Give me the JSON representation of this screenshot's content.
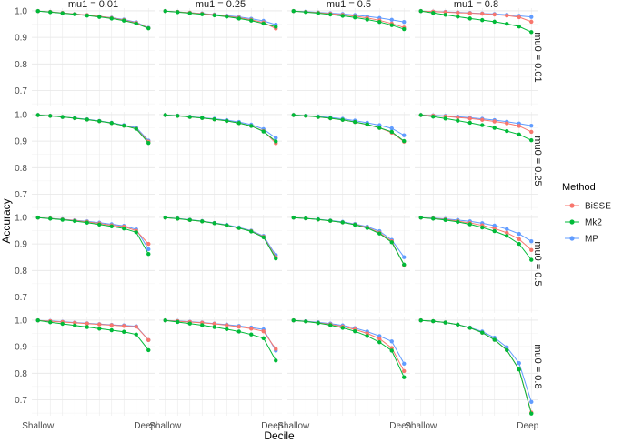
{
  "chart_data": {
    "type": "line",
    "xlabel": "Decile",
    "ylabel": "Accuracy",
    "x_tick_labels": [
      "Shallow",
      "Deep"
    ],
    "x": [
      1,
      2,
      3,
      4,
      5,
      6,
      7,
      8,
      9,
      10
    ],
    "ylim": [
      0.64,
      1.01
    ],
    "y_ticks": [
      0.7,
      0.8,
      0.9,
      1.0
    ],
    "y_tick_labels": [
      "0.7",
      "0.8",
      "0.9",
      "1.0"
    ],
    "column_labels": [
      "mu1 = 0.01",
      "mu1 = 0.25",
      "mu1 = 0.5",
      "mu1 = 0.8"
    ],
    "row_labels": [
      "mu0 = 0.01",
      "mu0 = 0.25",
      "mu0 = 0.5",
      "mu0 = 0.8"
    ],
    "legend": {
      "title": "Method",
      "position": "right",
      "items": [
        {
          "label": "BiSSE",
          "color": "#F8766D"
        },
        {
          "label": "Mk2",
          "color": "#00BA38"
        },
        {
          "label": "MP",
          "color": "#619CFF"
        }
      ]
    },
    "grid": true,
    "panels": [
      [
        {
          "BiSSE": [
            0.999,
            0.996,
            0.992,
            0.988,
            0.984,
            0.979,
            0.973,
            0.965,
            0.955,
            0.935
          ],
          "Mk2": [
            0.999,
            0.995,
            0.991,
            0.987,
            0.982,
            0.977,
            0.971,
            0.963,
            0.952,
            0.934
          ],
          "MP": [
            0.999,
            0.996,
            0.992,
            0.988,
            0.984,
            0.979,
            0.974,
            0.967,
            0.957,
            0.936
          ]
        },
        {
          "BiSSE": [
            0.999,
            0.996,
            0.993,
            0.989,
            0.985,
            0.98,
            0.974,
            0.966,
            0.956,
            0.933
          ],
          "Mk2": [
            0.999,
            0.995,
            0.991,
            0.987,
            0.983,
            0.978,
            0.971,
            0.963,
            0.952,
            0.94
          ],
          "MP": [
            0.999,
            0.996,
            0.993,
            0.99,
            0.986,
            0.982,
            0.977,
            0.97,
            0.962,
            0.948
          ]
        },
        {
          "BiSSE": [
            0.999,
            0.996,
            0.993,
            0.989,
            0.985,
            0.98,
            0.973,
            0.964,
            0.952,
            0.937
          ],
          "Mk2": [
            0.999,
            0.995,
            0.991,
            0.986,
            0.981,
            0.975,
            0.967,
            0.958,
            0.946,
            0.931
          ],
          "MP": [
            0.999,
            0.997,
            0.994,
            0.991,
            0.988,
            0.984,
            0.979,
            0.973,
            0.966,
            0.958
          ]
        },
        {
          "BiSSE": [
            0.999,
            0.997,
            0.995,
            0.993,
            0.991,
            0.989,
            0.986,
            0.982,
            0.976,
            0.959
          ],
          "Mk2": [
            0.999,
            0.992,
            0.985,
            0.978,
            0.971,
            0.965,
            0.959,
            0.951,
            0.941,
            0.92
          ],
          "MP": [
            0.999,
            0.997,
            0.996,
            0.994,
            0.992,
            0.99,
            0.988,
            0.985,
            0.981,
            0.977
          ]
        }
      ],
      [
        {
          "BiSSE": [
            0.998,
            0.995,
            0.991,
            0.986,
            0.981,
            0.975,
            0.968,
            0.958,
            0.947,
            0.898
          ],
          "Mk2": [
            0.998,
            0.995,
            0.991,
            0.986,
            0.981,
            0.975,
            0.968,
            0.958,
            0.946,
            0.893
          ],
          "MP": [
            0.998,
            0.995,
            0.991,
            0.987,
            0.982,
            0.976,
            0.969,
            0.96,
            0.951,
            0.902
          ]
        },
        {
          "BiSSE": [
            0.998,
            0.995,
            0.991,
            0.987,
            0.982,
            0.976,
            0.968,
            0.957,
            0.938,
            0.892
          ],
          "Mk2": [
            0.998,
            0.995,
            0.991,
            0.987,
            0.982,
            0.976,
            0.968,
            0.957,
            0.936,
            0.899
          ],
          "MP": [
            0.998,
            0.996,
            0.992,
            0.988,
            0.984,
            0.979,
            0.972,
            0.962,
            0.945,
            0.912
          ]
        },
        {
          "BiSSE": [
            0.998,
            0.995,
            0.991,
            0.986,
            0.98,
            0.972,
            0.962,
            0.95,
            0.932,
            0.898
          ],
          "Mk2": [
            0.998,
            0.995,
            0.991,
            0.986,
            0.98,
            0.972,
            0.963,
            0.95,
            0.935,
            0.9
          ],
          "MP": [
            0.998,
            0.996,
            0.993,
            0.989,
            0.984,
            0.977,
            0.969,
            0.96,
            0.948,
            0.922
          ]
        },
        {
          "BiSSE": [
            0.998,
            0.996,
            0.993,
            0.989,
            0.985,
            0.98,
            0.974,
            0.967,
            0.957,
            0.935
          ],
          "Mk2": [
            0.998,
            0.992,
            0.985,
            0.977,
            0.969,
            0.96,
            0.95,
            0.938,
            0.925,
            0.903
          ],
          "MP": [
            0.998,
            0.997,
            0.995,
            0.992,
            0.988,
            0.984,
            0.979,
            0.973,
            0.966,
            0.958
          ]
        }
      ],
      [
        {
          "BiSSE": [
            0.999,
            0.996,
            0.992,
            0.988,
            0.983,
            0.977,
            0.97,
            0.965,
            0.95,
            0.9
          ],
          "Mk2": [
            0.999,
            0.995,
            0.991,
            0.986,
            0.98,
            0.973,
            0.966,
            0.958,
            0.944,
            0.862
          ],
          "MP": [
            0.999,
            0.996,
            0.993,
            0.989,
            0.985,
            0.98,
            0.974,
            0.968,
            0.955,
            0.88
          ]
        },
        {
          "BiSSE": [
            0.999,
            0.995,
            0.99,
            0.985,
            0.978,
            0.97,
            0.96,
            0.948,
            0.927,
            0.85
          ],
          "Mk2": [
            0.999,
            0.995,
            0.99,
            0.985,
            0.978,
            0.97,
            0.96,
            0.947,
            0.925,
            0.845
          ],
          "MP": [
            0.999,
            0.996,
            0.991,
            0.986,
            0.979,
            0.972,
            0.962,
            0.95,
            0.93,
            0.858
          ]
        },
        {
          "BiSSE": [
            0.999,
            0.996,
            0.992,
            0.987,
            0.981,
            0.973,
            0.962,
            0.942,
            0.91,
            0.82
          ],
          "Mk2": [
            0.999,
            0.996,
            0.992,
            0.987,
            0.981,
            0.972,
            0.96,
            0.939,
            0.906,
            0.822
          ],
          "MP": [
            0.999,
            0.996,
            0.993,
            0.988,
            0.983,
            0.975,
            0.965,
            0.948,
            0.915,
            0.85
          ]
        },
        {
          "BiSSE": [
            0.999,
            0.996,
            0.992,
            0.986,
            0.979,
            0.97,
            0.958,
            0.942,
            0.918,
            0.877
          ],
          "Mk2": [
            0.999,
            0.995,
            0.99,
            0.983,
            0.974,
            0.962,
            0.948,
            0.93,
            0.9,
            0.84
          ],
          "MP": [
            0.999,
            0.997,
            0.994,
            0.99,
            0.985,
            0.978,
            0.969,
            0.956,
            0.938,
            0.91
          ]
        }
      ],
      [
        {
          "BiSSE": [
            0.999,
            0.996,
            0.993,
            0.99,
            0.987,
            0.984,
            0.981,
            0.978,
            0.975,
            0.925
          ],
          "Mk2": [
            0.999,
            0.992,
            0.986,
            0.98,
            0.974,
            0.968,
            0.962,
            0.956,
            0.946,
            0.887
          ],
          "MP": [
            0.999,
            0.997,
            0.994,
            0.991,
            0.988,
            0.985,
            0.982,
            0.98,
            0.977,
            0.925
          ]
        },
        {
          "BiSSE": [
            0.999,
            0.996,
            0.993,
            0.99,
            0.986,
            0.981,
            0.975,
            0.968,
            0.958,
            0.891
          ],
          "Mk2": [
            0.999,
            0.993,
            0.987,
            0.981,
            0.974,
            0.966,
            0.957,
            0.946,
            0.932,
            0.848
          ],
          "MP": [
            0.999,
            0.997,
            0.994,
            0.991,
            0.987,
            0.983,
            0.978,
            0.972,
            0.965,
            0.885
          ]
        },
        {
          "BiSSE": [
            0.999,
            0.995,
            0.99,
            0.984,
            0.976,
            0.965,
            0.95,
            0.93,
            0.895,
            0.808
          ],
          "Mk2": [
            0.999,
            0.995,
            0.989,
            0.981,
            0.971,
            0.958,
            0.94,
            0.917,
            0.885,
            0.785
          ],
          "MP": [
            0.999,
            0.996,
            0.992,
            0.987,
            0.98,
            0.97,
            0.957,
            0.94,
            0.92,
            0.836
          ]
        },
        {
          "BiSSE": [
            0.999,
            0.996,
            0.991,
            0.983,
            0.971,
            0.953,
            0.926,
            0.887,
            0.814,
            0.652
          ],
          "Mk2": [
            0.999,
            0.996,
            0.991,
            0.983,
            0.971,
            0.953,
            0.926,
            0.887,
            0.814,
            0.648
          ],
          "MP": [
            0.999,
            0.996,
            0.991,
            0.983,
            0.972,
            0.957,
            0.934,
            0.898,
            0.838,
            0.692
          ]
        }
      ]
    ]
  }
}
